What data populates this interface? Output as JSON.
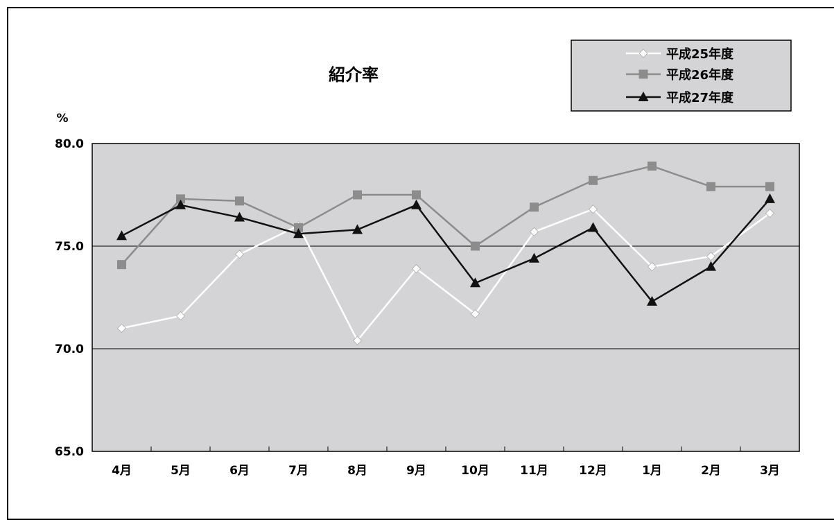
{
  "chart_data": {
    "type": "line",
    "title": "紹介率",
    "ylabel": "%",
    "ylim": [
      65,
      80
    ],
    "yticks": [
      "80.0",
      "75.0",
      "70.0",
      "65.0"
    ],
    "ytick_values": [
      80,
      75,
      70,
      65
    ],
    "gridlines": [
      70,
      75
    ],
    "grid": true,
    "legend": "top-right",
    "categories": [
      "4月",
      "5月",
      "6月",
      "7月",
      "8月",
      "9月",
      "10月",
      "11月",
      "12月",
      "1月",
      "2月",
      "3月"
    ],
    "series": [
      {
        "name": "平成25年度",
        "values": [
          71.0,
          71.6,
          74.6,
          76.0,
          70.4,
          73.9,
          71.7,
          75.7,
          76.8,
          74.0,
          74.5,
          76.6
        ],
        "color": "#ffffff",
        "marker": "diamond"
      },
      {
        "name": "平成26年度",
        "values": [
          74.1,
          77.3,
          77.2,
          75.9,
          77.5,
          77.5,
          75.0,
          76.9,
          78.2,
          78.9,
          77.9,
          77.9
        ],
        "color": "#8c8c8c",
        "marker": "square"
      },
      {
        "name": "平成27年度",
        "values": [
          75.5,
          77.0,
          76.4,
          75.6,
          75.8,
          77.0,
          73.2,
          74.4,
          75.9,
          72.3,
          74.0,
          77.3
        ],
        "color": "#111111",
        "marker": "triangle"
      }
    ]
  }
}
